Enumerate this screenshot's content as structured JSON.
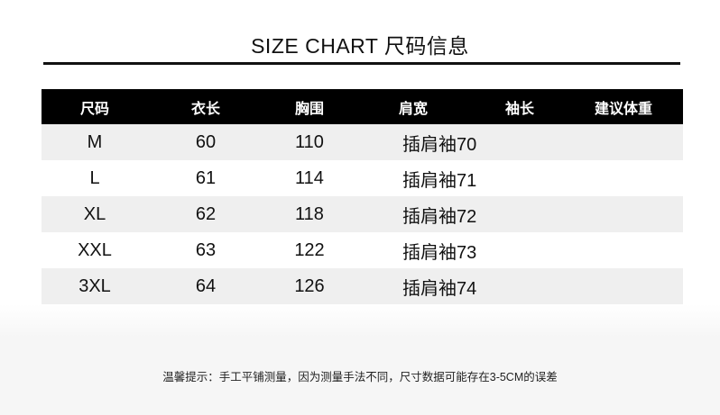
{
  "title": "SIZE CHART 尺码信息",
  "table": {
    "headers": [
      "尺码",
      "衣长",
      "胸围",
      "肩宽",
      "袖长",
      "建议体重"
    ],
    "rows": [
      [
        "M",
        "60",
        "110",
        "插肩袖70",
        "",
        ""
      ],
      [
        "L",
        "61",
        "114",
        "插肩袖71",
        "",
        ""
      ],
      [
        "XL",
        "62",
        "118",
        "插肩袖72",
        "",
        ""
      ],
      [
        "XXL",
        "63",
        "122",
        "插肩袖73",
        "",
        ""
      ],
      [
        "3XL",
        "64",
        "126",
        "插肩袖74",
        "",
        ""
      ]
    ]
  },
  "note": "温馨提示：手工平铺测量，因为测量手法不同，尺寸数据可能存在3-5CM的误差",
  "colors": {
    "header_bg": "#000000",
    "stripe": "#efefef"
  }
}
